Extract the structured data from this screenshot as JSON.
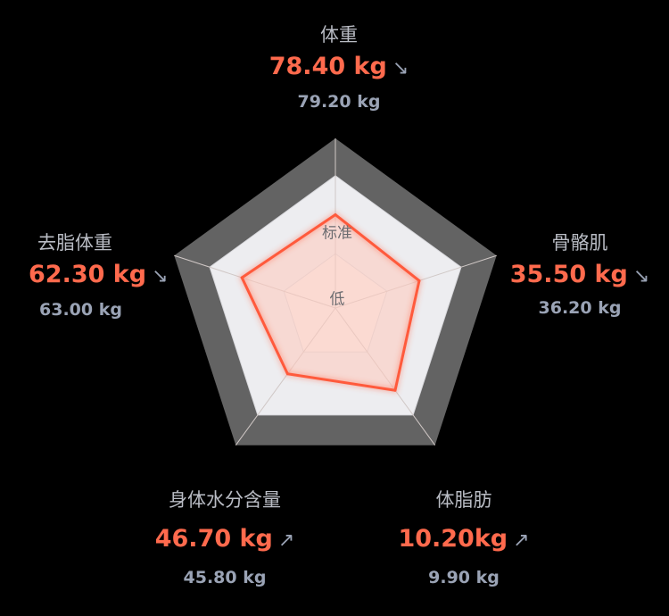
{
  "chart_data": {
    "type": "radar",
    "bands": [
      "标准",
      "低"
    ],
    "axes": [
      {
        "name": "体重",
        "current": "78.40 kg",
        "trend": "↘",
        "previous": "79.20 kg",
        "level": 0.55
      },
      {
        "name": "骨骼肌",
        "current": "35.50 kg",
        "trend": "↘",
        "previous": "36.20 kg",
        "level": 0.52
      },
      {
        "name": "体脂肪",
        "current": "10.20kg",
        "trend": "↗",
        "previous": "9.90 kg",
        "level": 0.6
      },
      {
        "name": "身体水分含量",
        "current": "46.70 kg",
        "trend": "↗",
        "previous": "45.80 kg",
        "level": 0.48
      },
      {
        "name": "去脂体重",
        "current": "62.30 kg",
        "trend": "↘",
        "previous": "63.00 kg",
        "level": 0.58
      }
    ]
  },
  "colors": {
    "outer_ring": "#636363",
    "standard_ring": "#ededf0",
    "low_ring": "#f6efee",
    "data_line": "#ff5a3c",
    "data_fill": "#ffc9bb",
    "value": "#ff6a4d",
    "secondary": "#9aa3b5"
  }
}
